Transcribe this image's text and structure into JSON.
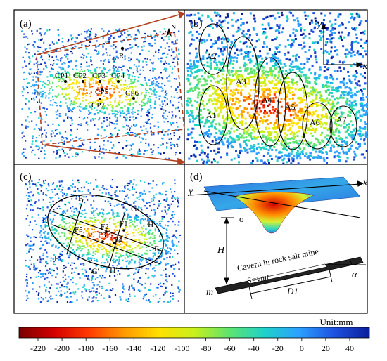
{
  "panels": {
    "a": {
      "label": "(a)",
      "north": "N",
      "reference_point": "R",
      "points": [
        "CP1",
        "CP2",
        "CP3",
        "CP4",
        "CP5",
        "CP6",
        "CP7"
      ]
    },
    "b": {
      "label": "(b)",
      "axis_x": "x",
      "axis_y": "y",
      "areas": [
        "A1",
        "A2",
        "A3",
        "A4",
        "A5",
        "A6",
        "A7"
      ]
    },
    "c": {
      "label": "(c)",
      "section_labels": [
        "E",
        "F",
        "G",
        "H",
        "E'",
        "F'",
        "G'",
        "H'"
      ],
      "point_labels": [
        "F1",
        "F2",
        "F3",
        "F4",
        "F5"
      ]
    },
    "d": {
      "label": "(d)",
      "axis_x": "x",
      "axis_y": "y",
      "origin": "o",
      "depth": "H",
      "cavern_text": "Cavern in rock salt mine",
      "length_formula": "S=vmt",
      "d1": "D1",
      "angle": "α",
      "mass": "m"
    }
  },
  "colorbar": {
    "unit": "Unit:mm",
    "ticks": [
      "-220",
      "-200",
      "-180",
      "-160",
      "-140",
      "-120",
      "-100",
      "-80",
      "-60",
      "-40",
      "-20",
      "0",
      "20",
      "40"
    ],
    "colors": [
      "#7a0000",
      "#d40000",
      "#ff3a00",
      "#ff9a00",
      "#ffe000",
      "#c8f01c",
      "#5ee36e",
      "#1ed2c8",
      "#2aa0ff",
      "#1e50e0",
      "#0a1e9a"
    ]
  }
}
